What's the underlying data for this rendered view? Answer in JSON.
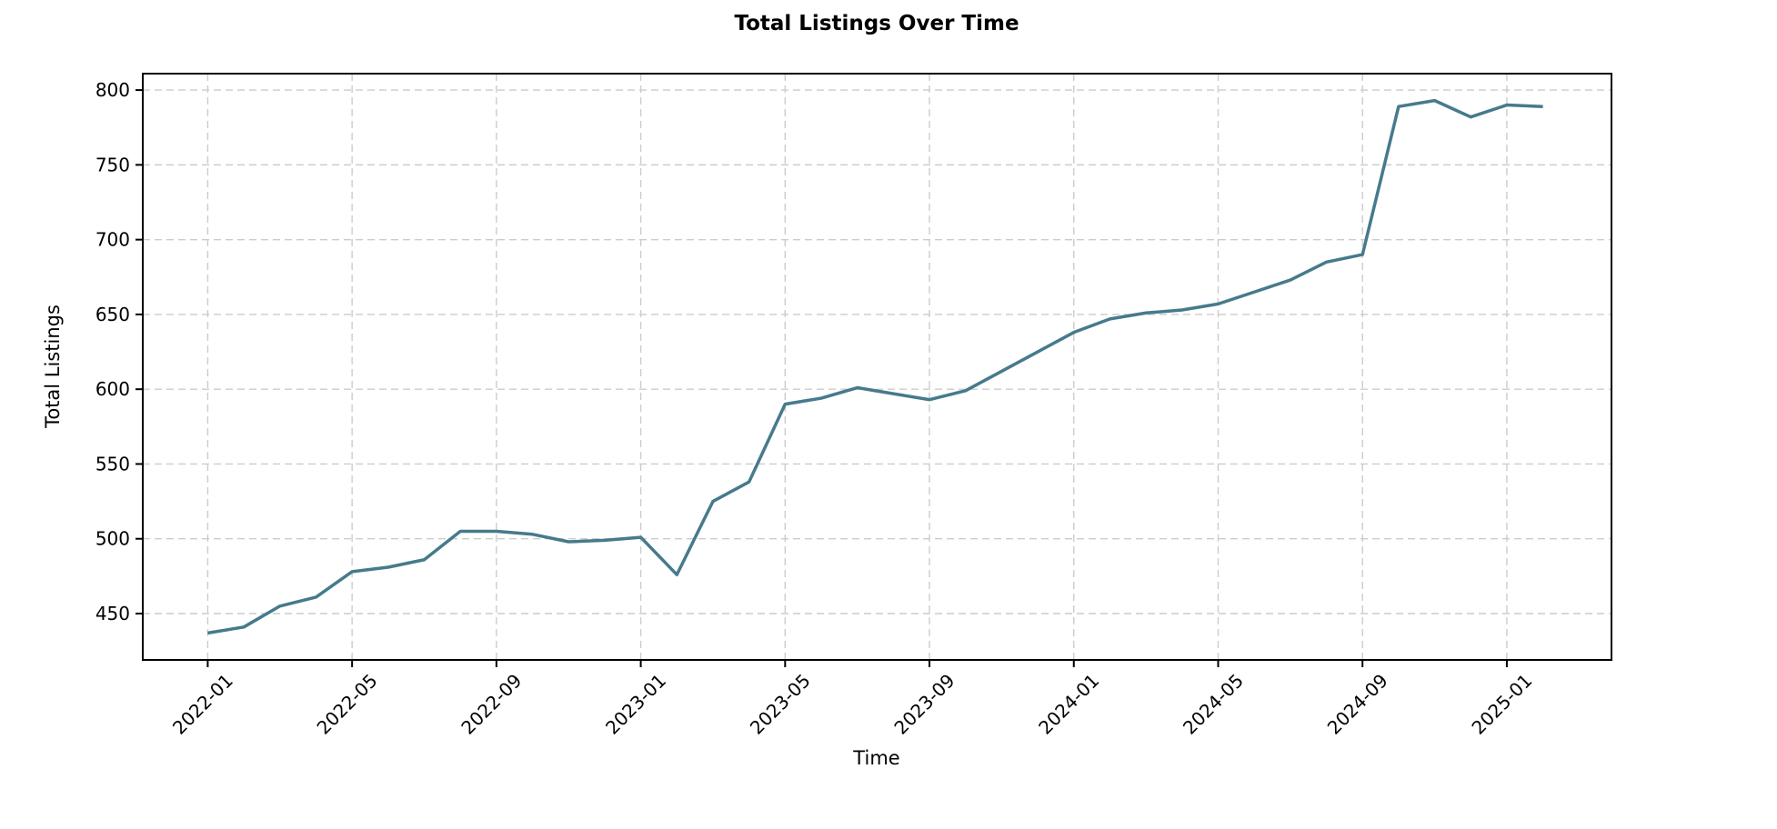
{
  "chart": {
    "title": "Total Listings Over Time",
    "xlabel": "Time",
    "ylabel": "Total Listings"
  },
  "chart_data": {
    "type": "line",
    "title": "Total Listings Over Time",
    "xlabel": "Time",
    "ylabel": "Total Listings",
    "x": [
      "2022-01",
      "2022-02",
      "2022-03",
      "2022-04",
      "2022-05",
      "2022-06",
      "2022-07",
      "2022-08",
      "2022-09",
      "2022-10",
      "2022-11",
      "2022-12",
      "2023-01",
      "2023-02",
      "2023-03",
      "2023-04",
      "2023-05",
      "2023-06",
      "2023-07",
      "2023-08",
      "2023-09",
      "2023-10",
      "2023-11",
      "2023-12",
      "2024-01",
      "2024-02",
      "2024-03",
      "2024-04",
      "2024-05",
      "2024-06",
      "2024-07",
      "2024-08",
      "2024-09",
      "2024-10",
      "2024-11",
      "2024-12",
      "2025-01",
      "2025-02"
    ],
    "values": [
      437,
      441,
      455,
      461,
      478,
      481,
      486,
      505,
      505,
      503,
      498,
      499,
      501,
      476,
      525,
      538,
      590,
      594,
      601,
      597,
      593,
      599,
      612,
      625,
      638,
      647,
      651,
      653,
      657,
      665,
      673,
      685,
      690,
      789,
      793,
      782,
      790,
      789
    ],
    "x_tick_indices": [
      0,
      4,
      8,
      12,
      16,
      20,
      24,
      28,
      32,
      36
    ],
    "y_ticks": [
      450,
      500,
      550,
      600,
      650,
      700,
      750,
      800
    ],
    "ylim": [
      419,
      811
    ],
    "xlim_months": [
      -1.8,
      38.9
    ],
    "grid": "dashed-both-axes",
    "legend": "none",
    "colors": {
      "line": "#467a8c",
      "grid": "#cccccc",
      "spine": "#000000",
      "text": "#000000"
    }
  }
}
